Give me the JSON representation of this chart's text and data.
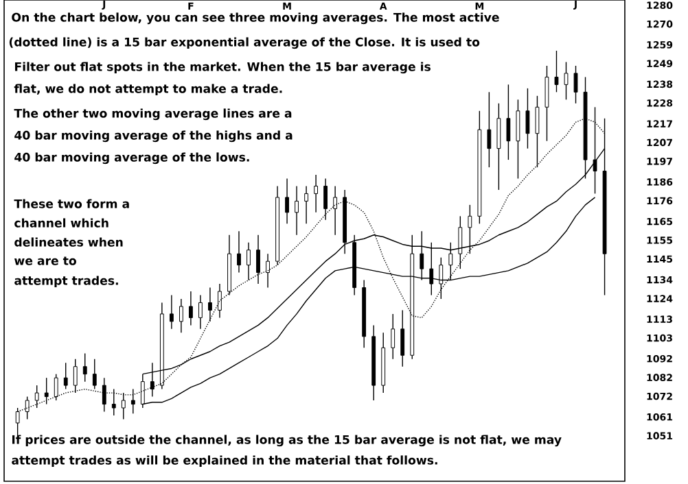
{
  "chart_data": {
    "type": "candlestick",
    "color": "#000000",
    "categories": [
      null,
      null,
      null,
      null,
      null,
      null,
      null,
      null,
      null,
      "J",
      null,
      null,
      null,
      null,
      null,
      null,
      null,
      null,
      "F",
      null,
      null,
      null,
      null,
      null,
      null,
      null,
      null,
      null,
      "M",
      null,
      null,
      null,
      null,
      null,
      null,
      null,
      null,
      null,
      "A",
      null,
      null,
      null,
      null,
      null,
      null,
      null,
      null,
      null,
      "M",
      null,
      null,
      null,
      null,
      null,
      null,
      null,
      null,
      null,
      "J",
      null,
      null,
      null
    ],
    "ohlc": [
      [
        1060,
        1068,
        1052,
        1066
      ],
      [
        1066,
        1074,
        1062,
        1072
      ],
      [
        1072,
        1080,
        1068,
        1076
      ],
      [
        1076,
        1084,
        1070,
        1074
      ],
      [
        1074,
        1086,
        1072,
        1084
      ],
      [
        1084,
        1092,
        1078,
        1080
      ],
      [
        1080,
        1094,
        1076,
        1090
      ],
      [
        1090,
        1097,
        1082,
        1086
      ],
      [
        1086,
        1094,
        1078,
        1080
      ],
      [
        1080,
        1084,
        1066,
        1070
      ],
      [
        1070,
        1078,
        1064,
        1068
      ],
      [
        1068,
        1076,
        1062,
        1072
      ],
      [
        1072,
        1078,
        1065,
        1070
      ],
      [
        1070,
        1086,
        1068,
        1082
      ],
      [
        1082,
        1092,
        1074,
        1078
      ],
      [
        1080,
        1124,
        1078,
        1118
      ],
      [
        1118,
        1128,
        1110,
        1114
      ],
      [
        1114,
        1126,
        1108,
        1122
      ],
      [
        1122,
        1130,
        1112,
        1116
      ],
      [
        1116,
        1128,
        1110,
        1124
      ],
      [
        1124,
        1132,
        1114,
        1120
      ],
      [
        1120,
        1134,
        1116,
        1130
      ],
      [
        1130,
        1160,
        1128,
        1150
      ],
      [
        1150,
        1162,
        1140,
        1144
      ],
      [
        1144,
        1156,
        1136,
        1152
      ],
      [
        1152,
        1160,
        1134,
        1140
      ],
      [
        1140,
        1150,
        1132,
        1146
      ],
      [
        1146,
        1186,
        1144,
        1180
      ],
      [
        1180,
        1190,
        1166,
        1172
      ],
      [
        1172,
        1186,
        1160,
        1178
      ],
      [
        1178,
        1186,
        1166,
        1182
      ],
      [
        1182,
        1192,
        1172,
        1186
      ],
      [
        1186,
        1190,
        1168,
        1174
      ],
      [
        1174,
        1186,
        1160,
        1180
      ],
      [
        1180,
        1184,
        1150,
        1156
      ],
      [
        1156,
        1160,
        1128,
        1132
      ],
      [
        1132,
        1136,
        1100,
        1106
      ],
      [
        1106,
        1112,
        1072,
        1080
      ],
      [
        1080,
        1108,
        1076,
        1100
      ],
      [
        1100,
        1118,
        1094,
        1110
      ],
      [
        1110,
        1120,
        1090,
        1096
      ],
      [
        1096,
        1160,
        1094,
        1150
      ],
      [
        1150,
        1162,
        1136,
        1142
      ],
      [
        1142,
        1156,
        1128,
        1134
      ],
      [
        1134,
        1148,
        1126,
        1144
      ],
      [
        1144,
        1156,
        1136,
        1150
      ],
      [
        1150,
        1170,
        1142,
        1164
      ],
      [
        1164,
        1176,
        1150,
        1170
      ],
      [
        1170,
        1226,
        1166,
        1216
      ],
      [
        1216,
        1236,
        1196,
        1206
      ],
      [
        1206,
        1230,
        1184,
        1222
      ],
      [
        1222,
        1240,
        1200,
        1210
      ],
      [
        1210,
        1232,
        1190,
        1226
      ],
      [
        1226,
        1238,
        1206,
        1214
      ],
      [
        1214,
        1234,
        1196,
        1228
      ],
      [
        1228,
        1250,
        1210,
        1244
      ],
      [
        1244,
        1258,
        1236,
        1240
      ],
      [
        1240,
        1252,
        1232,
        1246
      ],
      [
        1246,
        1250,
        1230,
        1236
      ],
      [
        1236,
        1244,
        1190,
        1200
      ],
      [
        1200,
        1228,
        1182,
        1194
      ],
      [
        1194,
        1222,
        1128,
        1150
      ]
    ],
    "series": [
      {
        "type": "line",
        "line_style": "dotted",
        "color": "#000000",
        "values": [
          1066,
          1068,
          1070,
          1072,
          1074,
          1076,
          1077,
          1078,
          1077,
          1076,
          1076,
          1075,
          1075,
          1077,
          1079,
          1081,
          1086,
          1091,
          1095,
          1105,
          1115,
          1125,
          1129,
          1133,
          1136,
          1139,
          1141,
          1144,
          1149,
          1154,
          1159,
          1165,
          1171,
          1176,
          1178,
          1176,
          1172,
          1162,
          1148,
          1137,
          1127,
          1117,
          1116,
          1122,
          1131,
          1138,
          1145,
          1152,
          1157,
          1164,
          1171,
          1181,
          1186,
          1192,
          1197,
          1203,
          1208,
          1213,
          1220,
          1222,
          1220,
          1214
        ]
      },
      {
        "type": "line",
        "line_style": "solid",
        "color": "#000000",
        "values": [
          null,
          null,
          null,
          null,
          null,
          null,
          null,
          null,
          null,
          null,
          null,
          null,
          null,
          1086,
          1087,
          1088,
          1089,
          1091,
          1094,
          1096,
          1098,
          1101,
          1103,
          1106,
          1109,
          1112,
          1116,
          1121,
          1126,
          1131,
          1136,
          1141,
          1146,
          1150,
          1155,
          1157,
          1158,
          1160,
          1159,
          1157,
          1155,
          1154,
          1154,
          1153,
          1153,
          1152,
          1153,
          1154,
          1155,
          1157,
          1160,
          1162,
          1164,
          1167,
          1171,
          1175,
          1178,
          1183,
          1187,
          1192,
          1199,
          1206
        ]
      },
      {
        "type": "line",
        "line_style": "solid",
        "color": "#000000",
        "values": [
          null,
          null,
          null,
          null,
          null,
          null,
          null,
          null,
          null,
          null,
          null,
          null,
          null,
          1070,
          1071,
          1071,
          1073,
          1076,
          1079,
          1081,
          1084,
          1086,
          1089,
          1092,
          1095,
          1098,
          1101,
          1105,
          1112,
          1118,
          1125,
          1131,
          1137,
          1141,
          1142,
          1143,
          1142,
          1141,
          1140,
          1139,
          1138,
          1138,
          1137,
          1137,
          1136,
          1136,
          1137,
          1138,
          1138,
          1139,
          1140,
          1141,
          1143,
          1145,
          1148,
          1151,
          1156,
          1162,
          1170,
          1176,
          1180,
          null
        ]
      }
    ],
    "ylim": [
      1029,
      1285
    ],
    "yticks": [
      1051,
      1061,
      1072,
      1082,
      1092,
      1103,
      1113,
      1124,
      1134,
      1145,
      1155,
      1165,
      1176,
      1186,
      1197,
      1207,
      1217,
      1228,
      1238,
      1249,
      1259,
      1270,
      1280
    ],
    "annotations": [
      "On the chart below, you can see three moving averages. The most active",
      "(dotted line) is a 15 bar exponential average of the Close. It is used to",
      "Filter out flat spots in the market. When the 15 bar average is",
      "flat, we do not attempt to make a trade.",
      "The other two moving average lines are a",
      "40 bar moving average of the highs and a",
      "40 bar moving average of the lows.",
      "These two form a",
      "channel which",
      "delineates when",
      "we are to",
      "attempt trades.",
      "If prices are outside the channel, as long as the 15 bar average is not flat, we may",
      "attempt trades as will be explained in the material that follows."
    ]
  }
}
